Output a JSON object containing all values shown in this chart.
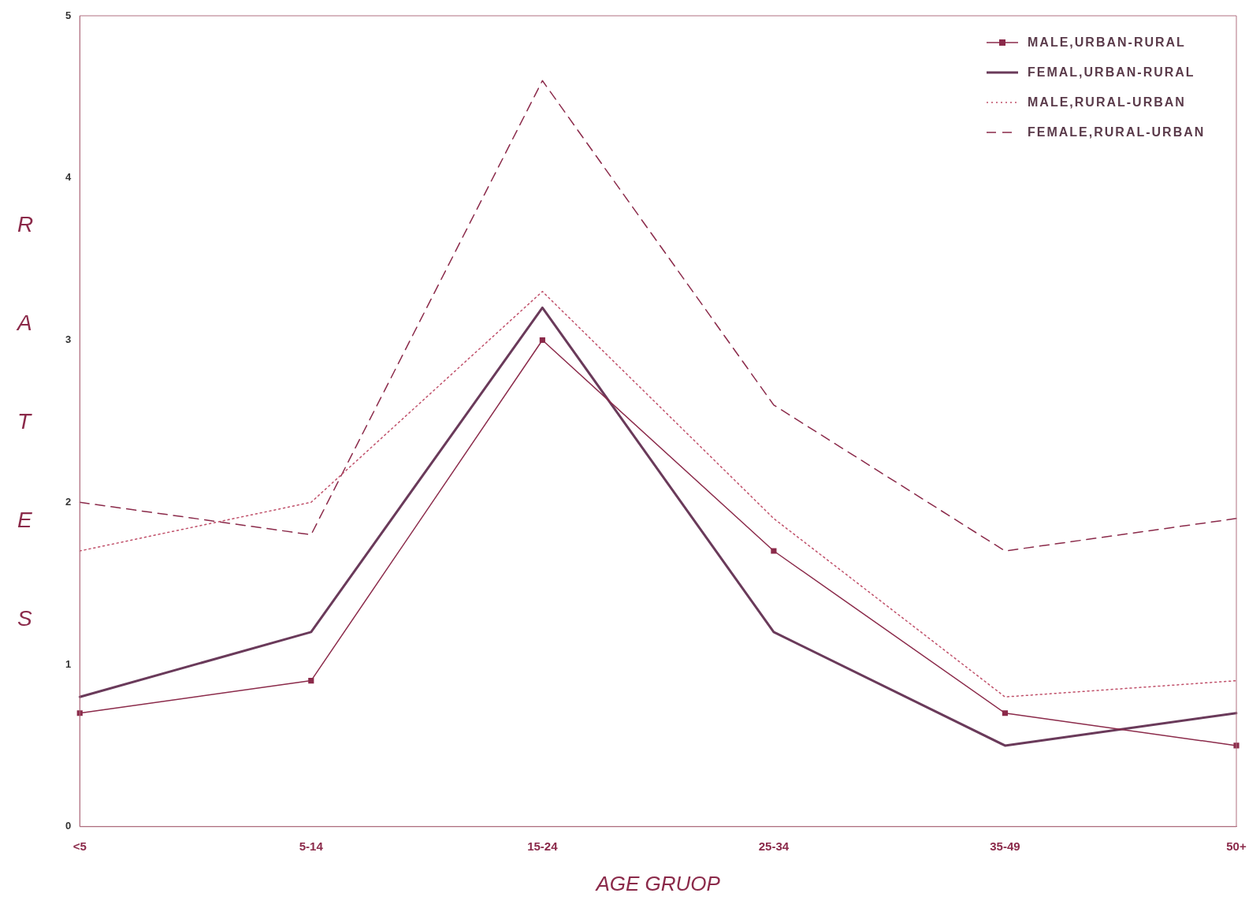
{
  "chart_data": {
    "type": "line",
    "xlabel": "AGE GRUOP",
    "ylabel": "RATES",
    "categories": [
      "<5",
      "5-14",
      "15-24",
      "25-34",
      "35-49",
      "50+"
    ],
    "ylim": [
      0,
      5
    ],
    "yticks": [
      0,
      1,
      2,
      3,
      4,
      5
    ],
    "grid": false,
    "legend": "top right",
    "series": [
      {
        "name": "MALE,URBAN-RURAL",
        "color": "#8b2a4a",
        "marker": "square",
        "line_style": "solid",
        "values": [
          0.7,
          0.9,
          3.0,
          1.7,
          0.7,
          0.5
        ]
      },
      {
        "name": "FEMAL,URBAN-RURAL",
        "color": "#6a3a5a",
        "marker": "none",
        "line_style": "solid",
        "values": [
          0.8,
          1.2,
          3.2,
          1.2,
          0.5,
          0.7
        ]
      },
      {
        "name": "MALE,RURAL-URBAN",
        "color": "#c0506a",
        "marker": "none",
        "line_style": "dotted",
        "values": [
          1.7,
          2.0,
          3.3,
          1.9,
          0.8,
          0.9
        ]
      },
      {
        "name": "FEMALE,RURAL-URBAN",
        "color": "#8b2a4a",
        "marker": "none",
        "line_style": "dashed",
        "values": [
          2.0,
          1.8,
          4.6,
          2.6,
          1.7,
          1.9
        ]
      }
    ]
  }
}
